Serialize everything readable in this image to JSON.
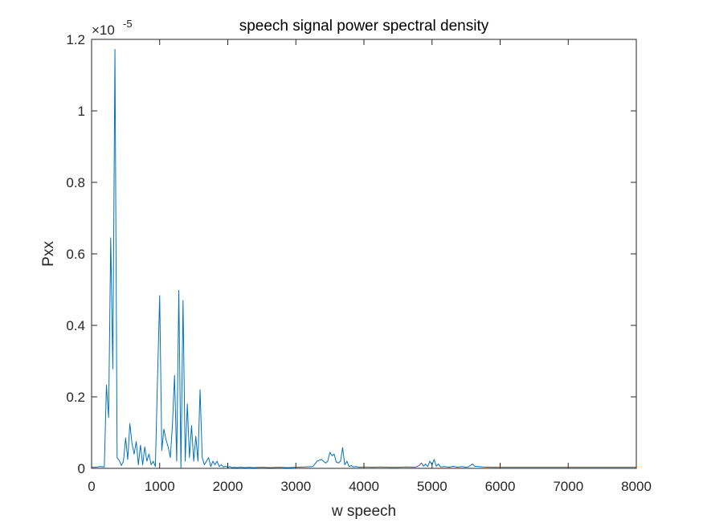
{
  "chart_data": {
    "type": "line",
    "title": "speech signal power spectral density",
    "xlabel": "w speech",
    "ylabel": "Pxx",
    "xlim": [
      0,
      8000
    ],
    "ylim": [
      0,
      1.2
    ],
    "y_exponent_label": "×10",
    "y_exponent_power": "-5",
    "x_ticks": [
      0,
      1000,
      2000,
      3000,
      4000,
      5000,
      6000,
      7000,
      8000
    ],
    "x_tick_labels": [
      "0",
      "1000",
      "2000",
      "3000",
      "4000",
      "5000",
      "6000",
      "7000",
      "8000"
    ],
    "y_ticks": [
      0,
      0.2,
      0.4,
      0.6,
      0.8,
      1.0,
      1.2
    ],
    "y_tick_labels": [
      "0",
      "0.2",
      "0.4",
      "0.6",
      "0.8",
      "1",
      "1.2"
    ],
    "grid": false,
    "line_color": "#0072BD",
    "series": [
      {
        "x": [
          0,
          62,
          125,
          187,
          218,
          250,
          281,
          312,
          343,
          375,
          406,
          437,
          468,
          500,
          531,
          562,
          593,
          625,
          656,
          687,
          718,
          750,
          781,
          812,
          843,
          875,
          906,
          937,
          968,
          1000,
          1031,
          1062,
          1093,
          1125,
          1156,
          1187,
          1218,
          1250,
          1281,
          1312,
          1343,
          1375,
          1406,
          1437,
          1468,
          1500,
          1531,
          1562,
          1593,
          1625,
          1656,
          1687,
          1718,
          1750,
          1781,
          1812,
          1843,
          1875,
          1906,
          1937,
          1968,
          2000,
          2031,
          2062,
          2093,
          2125,
          2187,
          2250,
          2312,
          2375,
          2500,
          2625,
          2750,
          2875,
          3000,
          3125,
          3250,
          3312,
          3375,
          3437,
          3468,
          3500,
          3531,
          3562,
          3593,
          3625,
          3656,
          3687,
          3718,
          3750,
          3781,
          3812,
          3843,
          3875,
          3937,
          4000,
          4125,
          4250,
          4375,
          4500,
          4625,
          4750,
          4812,
          4843,
          4875,
          4906,
          4937,
          4968,
          5000,
          5031,
          5062,
          5093,
          5125,
          5187,
          5250,
          5312,
          5375,
          5437,
          5500,
          5531,
          5562,
          5593,
          5625,
          5687,
          5750,
          5875,
          6000,
          6250,
          6500,
          6750,
          7000,
          7250,
          7500,
          7750,
          8000
        ],
        "y": [
          0.003,
          0.003,
          0.005,
          0.004,
          0.233,
          0.142,
          0.645,
          0.278,
          1.172,
          0.03,
          0.022,
          0.008,
          0.02,
          0.085,
          0.025,
          0.125,
          0.07,
          0.04,
          0.075,
          0.01,
          0.065,
          0.01,
          0.06,
          0.02,
          0.04,
          0.01,
          0.02,
          0.005,
          0.25,
          0.483,
          0.05,
          0.11,
          0.08,
          0.06,
          0.03,
          0.12,
          0.26,
          0.02,
          0.498,
          0.0,
          0.47,
          0.02,
          0.18,
          0.03,
          0.12,
          0.02,
          0.09,
          0.02,
          0.22,
          0.03,
          0.01,
          0.02,
          0.03,
          0.005,
          0.02,
          0.01,
          0.02,
          0.005,
          0.01,
          0.004,
          0.006,
          0.003,
          0.005,
          0.002,
          0.003,
          0.002,
          0.003,
          0.002,
          0.003,
          0.002,
          0.003,
          0.002,
          0.003,
          0.002,
          0.003,
          0.004,
          0.005,
          0.02,
          0.025,
          0.015,
          0.02,
          0.045,
          0.035,
          0.04,
          0.018,
          0.015,
          0.02,
          0.058,
          0.01,
          0.02,
          0.005,
          0.008,
          0.004,
          0.005,
          0.003,
          0.004,
          0.003,
          0.004,
          0.003,
          0.003,
          0.004,
          0.003,
          0.008,
          0.015,
          0.006,
          0.012,
          0.005,
          0.02,
          0.01,
          0.025,
          0.006,
          0.012,
          0.004,
          0.005,
          0.003,
          0.006,
          0.003,
          0.005,
          0.003,
          0.004,
          0.008,
          0.012,
          0.006,
          0.005,
          0.004,
          0.003,
          0.003,
          0.003,
          0.003,
          0.003,
          0.003,
          0.003,
          0.003,
          0.003,
          0.003
        ]
      }
    ]
  }
}
